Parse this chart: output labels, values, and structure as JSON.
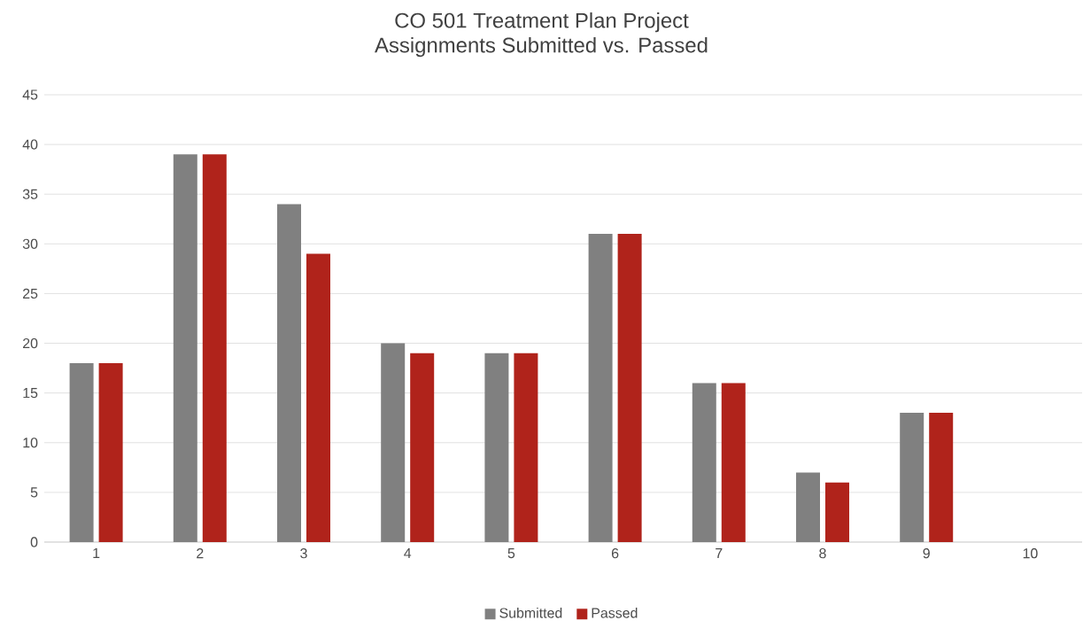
{
  "chart_data": {
    "type": "bar",
    "title": "CO 501 Treatment Plan Project",
    "subtitle": "Assignments Submitted vs. Passed",
    "categories": [
      "1",
      "2",
      "3",
      "4",
      "5",
      "6",
      "7",
      "8",
      "9",
      "10"
    ],
    "series": [
      {
        "name": "Submitted",
        "color": "#808080",
        "values": [
          18,
          39,
          34,
          20,
          19,
          31,
          16,
          7,
          13,
          null
        ]
      },
      {
        "name": "Passed",
        "color": "#b0231b",
        "values": [
          18,
          39,
          29,
          19,
          19,
          31,
          16,
          6,
          13,
          null
        ]
      }
    ],
    "ylim": [
      0,
      45
    ],
    "yticks": [
      0,
      5,
      10,
      15,
      20,
      25,
      30,
      35,
      40,
      45
    ],
    "grid": "y",
    "legend": "bottom"
  }
}
